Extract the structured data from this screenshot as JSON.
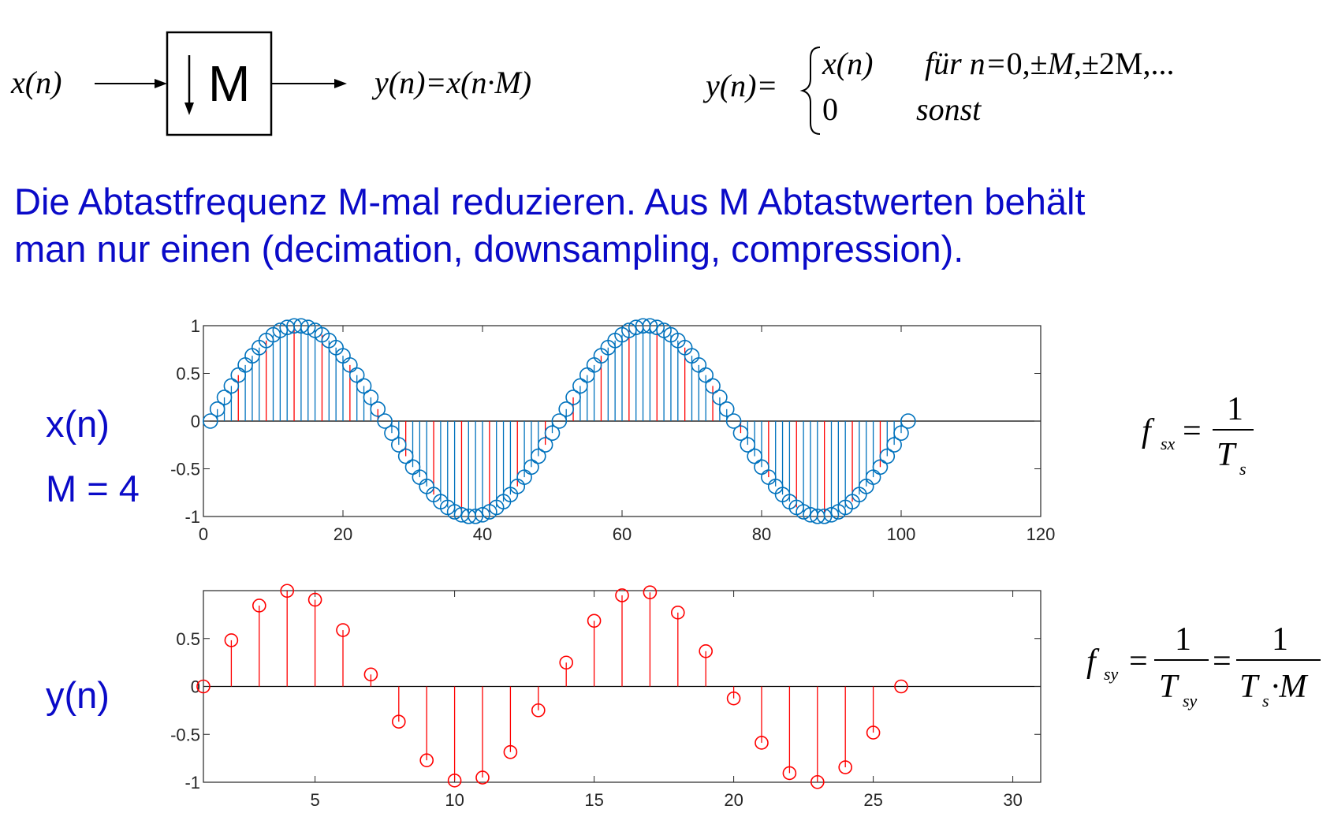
{
  "block_diagram": {
    "input": "x(n)",
    "block_label": "M",
    "output_eq": "y(n)=x(n·M)"
  },
  "piecewise": {
    "lhs": "y(n)=",
    "case1_expr": "x(n)",
    "case1_cond_a": "für n=",
    "case1_cond_b": "0,±",
    "case1_cond_c": "M",
    "case1_cond_d": ",±2M,...",
    "case2_expr": "0",
    "case2_cond": "sonst"
  },
  "description": {
    "line1": "Die Abtastfrequenz M-mal reduzieren. Aus M Abtastwerten behält",
    "line2": "man nur einen (decimation, downsampling, compression)."
  },
  "labels": {
    "x": "x(n)",
    "m": "M = 4",
    "y": "y(n)"
  },
  "formulas": {
    "fsx": {
      "f": "f",
      "sub": "sx",
      "eq": "=",
      "num": "1",
      "den": "T",
      "den_sub": "s"
    },
    "fsy": {
      "f": "f",
      "sub": "sy",
      "eq": "=",
      "num1": "1",
      "den1": "T",
      "den1_sub": "sy",
      "eq2": "=",
      "num2": "1",
      "den2_a": "T",
      "den2_sub": "s",
      "den2_b": "·M"
    }
  },
  "colors": {
    "text_blue": "#0a0ac8",
    "stem_blue": "#0072bd",
    "stem_red": "#ff0000",
    "axis": "#262626"
  },
  "chart_data": [
    {
      "type": "stem",
      "signal": "x(n)",
      "n": [
        1,
        2,
        3,
        4,
        5,
        6,
        7,
        8,
        9,
        10,
        11,
        12,
        13,
        14,
        15,
        16,
        17,
        18,
        19,
        20,
        21,
        22,
        23,
        24,
        25,
        26,
        27,
        28,
        29,
        30,
        31,
        32,
        33,
        34,
        35,
        36,
        37,
        38,
        39,
        40,
        41,
        42,
        43,
        44,
        45,
        46,
        47,
        48,
        49,
        50,
        51,
        52,
        53,
        54,
        55,
        56,
        57,
        58,
        59,
        60,
        61,
        62,
        63,
        64,
        65,
        66,
        67,
        68,
        69,
        70,
        71,
        72,
        73,
        74,
        75,
        76,
        77,
        78,
        79,
        80,
        81,
        82,
        83,
        84,
        85,
        86,
        87,
        88,
        89,
        90,
        91,
        92,
        93,
        94,
        95,
        96,
        97,
        98,
        99,
        100,
        101
      ],
      "formula": "sin(2*pi*(n-1)/50)",
      "highlight_every": 4,
      "highlight_offset": 1,
      "xlim": [
        0,
        120
      ],
      "ylim": [
        -1,
        1
      ],
      "xticks": [
        "0",
        "20",
        "40",
        "60",
        "80",
        "100",
        "120"
      ],
      "yticks": [
        "1",
        "0.5",
        "0",
        "-0.5",
        "-1"
      ]
    },
    {
      "type": "stem",
      "signal": "y(n)",
      "n": [
        1,
        2,
        3,
        4,
        5,
        6,
        7,
        8,
        9,
        10,
        11,
        12,
        13,
        14,
        15,
        16,
        17,
        18,
        19,
        20,
        21,
        22,
        23,
        24,
        25,
        26
      ],
      "values": [
        0,
        0.482,
        0.844,
        0.998,
        0.905,
        0.588,
        0.125,
        -0.368,
        -0.771,
        -0.982,
        -0.951,
        -0.685,
        -0.249,
        0.249,
        0.685,
        0.951,
        0.982,
        0.771,
        0.368,
        -0.125,
        -0.588,
        -0.905,
        -0.998,
        -0.844,
        -0.482,
        0
      ],
      "xlim": [
        1,
        31
      ],
      "ylim": [
        -1,
        1
      ],
      "xticks": [
        "5",
        "10",
        "15",
        "20",
        "25",
        "30"
      ],
      "yticks": [
        "0.5",
        "0",
        "-0.5",
        "-1"
      ]
    }
  ]
}
